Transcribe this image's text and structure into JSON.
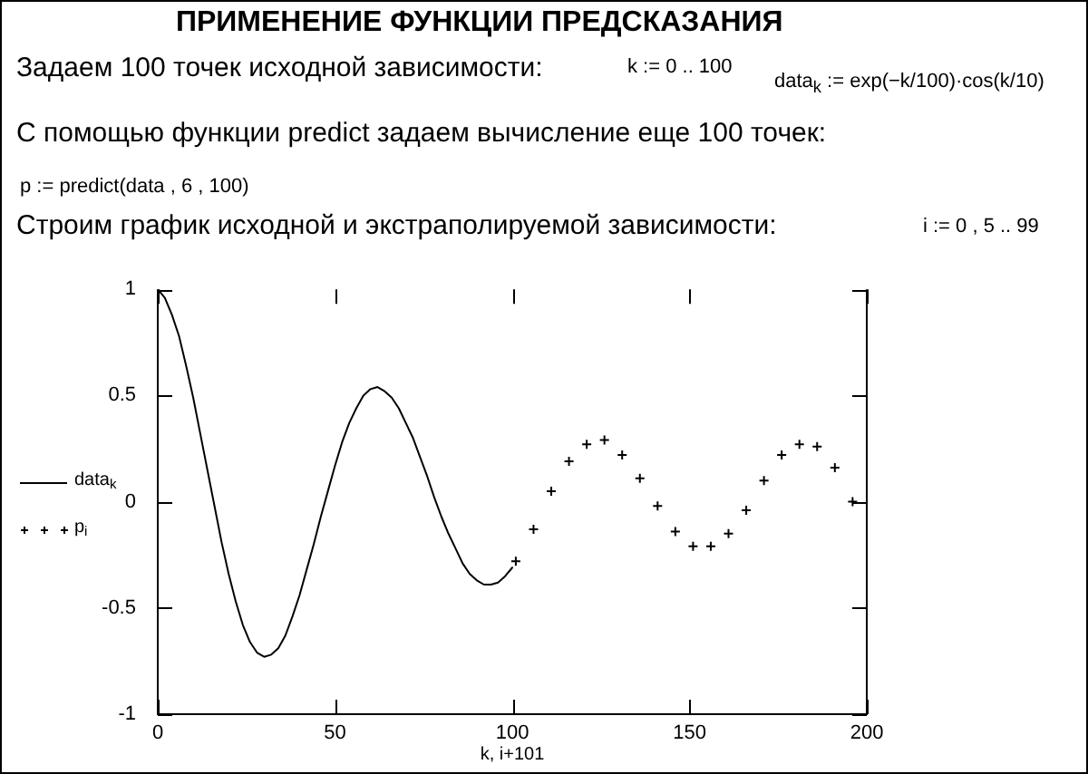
{
  "chart_data": {
    "type": "line",
    "title": "ПРИМЕНЕНИЕ ФУНКЦИИ ПРЕДСКАЗАНИЯ",
    "annotations": [
      "Задаем 100 точек исходной зависимости:",
      "k := 0 .. 100",
      "data$_{k}$ := exp(−k/100)·cos(k/10)",
      "С помощью функции predict задаем вычисление еще 100 точек:",
      "p := predict(data , 6 , 100)",
      "Строим график исходной и экстраполируемой зависимости:",
      "i := 0 , 5 .. 99"
    ],
    "xlabel": "k, i+101",
    "xlim": [
      0,
      200
    ],
    "xticks": [
      0,
      50,
      100,
      150,
      200
    ],
    "ylim": [
      -1,
      1
    ],
    "yticks": [
      -1,
      -0.5,
      0,
      0.5,
      1
    ],
    "legend": "left",
    "series": [
      {
        "name": "data$_{k}$",
        "color": "#000000",
        "marker": "none",
        "line_style": "solid",
        "x": [
          0,
          2,
          4,
          6,
          8,
          10,
          12,
          14,
          16,
          18,
          20,
          22,
          24,
          26,
          28,
          30,
          32,
          34,
          36,
          38,
          40,
          42,
          44,
          46,
          48,
          50,
          52,
          54,
          56,
          58,
          60,
          62,
          64,
          66,
          68,
          70,
          72,
          74,
          76,
          78,
          80,
          82,
          84,
          86,
          88,
          90,
          92,
          94,
          96,
          98,
          100
        ],
        "values": [
          1,
          0.96,
          0.88,
          0.78,
          0.64,
          0.49,
          0.32,
          0.15,
          -0.02,
          -0.19,
          -0.34,
          -0.47,
          -0.58,
          -0.66,
          -0.71,
          -0.73,
          -0.72,
          -0.69,
          -0.63,
          -0.54,
          -0.44,
          -0.32,
          -0.2,
          -0.07,
          0.05,
          0.17,
          0.28,
          0.37,
          0.44,
          0.5,
          0.53,
          0.54,
          0.52,
          0.49,
          0.44,
          0.37,
          0.3,
          0.21,
          0.12,
          0.02,
          -0.07,
          -0.15,
          -0.22,
          -0.29,
          -0.34,
          -0.37,
          -0.39,
          -0.39,
          -0.38,
          -0.35,
          -0.31
        ]
      },
      {
        "name": "p$_{i}$",
        "type": "scatter",
        "color": "#000000",
        "marker": "cross",
        "x": [
          101,
          106,
          111,
          116,
          121,
          126,
          131,
          136,
          141,
          146,
          151,
          156,
          161,
          166,
          171,
          176,
          181,
          186,
          191,
          196
        ],
        "values": [
          -0.28,
          -0.13,
          0.05,
          0.19,
          0.27,
          0.29,
          0.22,
          0.11,
          -0.02,
          -0.14,
          -0.21,
          -0.21,
          -0.15,
          -0.04,
          0.1,
          0.22,
          0.27,
          0.26,
          0.16,
          0
        ]
      }
    ]
  }
}
